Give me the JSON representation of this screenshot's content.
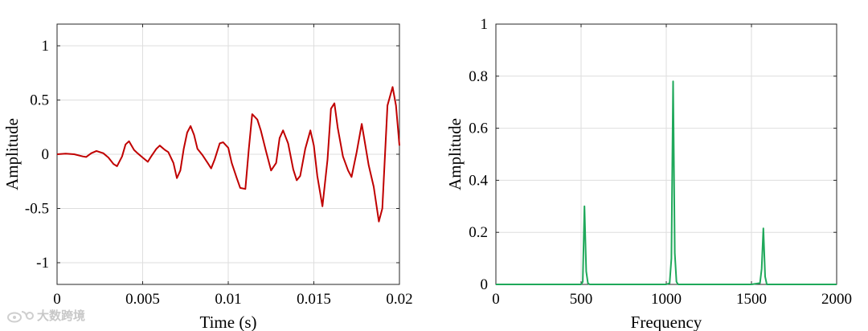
{
  "chart_data": [
    {
      "type": "line",
      "xlabel": "Time (s)",
      "ylabel": "Amplitude",
      "xlim": [
        0,
        0.02
      ],
      "ylim": [
        -1.2,
        1.2
      ],
      "xticks": [
        0,
        0.005,
        0.01,
        0.015,
        0.02
      ],
      "xtick_labels": [
        "0",
        "0.005",
        "0.01",
        "0.015",
        "0.02"
      ],
      "yticks": [
        -1,
        -0.5,
        0,
        0.5,
        1
      ],
      "ytick_labels": [
        "-1",
        "-0.5",
        "0",
        "0.5",
        "1"
      ],
      "grid": true,
      "series": [
        {
          "color": "#c00000",
          "x": [
            0,
            0.0005,
            0.001,
            0.0015,
            0.0017,
            0.002,
            0.0023,
            0.0027,
            0.003,
            0.0033,
            0.0035,
            0.0038,
            0.004,
            0.0042,
            0.0045,
            0.0047,
            0.005,
            0.0053,
            0.0055,
            0.0058,
            0.006,
            0.0063,
            0.0065,
            0.0068,
            0.007,
            0.0072,
            0.0074,
            0.0076,
            0.0078,
            0.008,
            0.0082,
            0.0085,
            0.0088,
            0.009,
            0.0092,
            0.0095,
            0.0097,
            0.01,
            0.0102,
            0.0105,
            0.0107,
            0.011,
            0.0112,
            0.0114,
            0.0117,
            0.0119,
            0.0122,
            0.0125,
            0.0128,
            0.013,
            0.0132,
            0.0135,
            0.0138,
            0.014,
            0.0142,
            0.0145,
            0.0148,
            0.015,
            0.0152,
            0.0155,
            0.0158,
            0.016,
            0.0162,
            0.0164,
            0.0167,
            0.017,
            0.0172,
            0.0175,
            0.0178,
            0.018,
            0.0182,
            0.0185,
            0.0188,
            0.019,
            0.0193,
            0.0196,
            0.0198,
            0.02
          ],
          "y": [
            0,
            0.005,
            0,
            -0.02,
            -0.025,
            0.01,
            0.03,
            0.01,
            -0.03,
            -0.09,
            -0.11,
            -0.02,
            0.09,
            0.12,
            0.04,
            0.01,
            -0.03,
            -0.07,
            -0.02,
            0.05,
            0.08,
            0.04,
            0.02,
            -0.08,
            -0.22,
            -0.15,
            0.05,
            0.2,
            0.26,
            0.18,
            0.05,
            -0.01,
            -0.08,
            -0.13,
            -0.05,
            0.1,
            0.11,
            0.06,
            -0.08,
            -0.22,
            -0.31,
            -0.32,
            0.05,
            0.37,
            0.32,
            0.22,
            0.03,
            -0.15,
            -0.08,
            0.15,
            0.22,
            0.1,
            -0.14,
            -0.24,
            -0.2,
            0.05,
            0.22,
            0.08,
            -0.2,
            -0.48,
            -0.05,
            0.42,
            0.47,
            0.24,
            -0.02,
            -0.15,
            -0.21,
            0.02,
            0.28,
            0.09,
            -0.1,
            -0.3,
            -0.62,
            -0.5,
            0.45,
            0.62,
            0.45,
            0.08
          ]
        }
      ]
    },
    {
      "type": "line",
      "xlabel": "Frequency",
      "ylabel": "Amplitude",
      "xlim": [
        0,
        2000
      ],
      "ylim": [
        0,
        1
      ],
      "xticks": [
        0,
        500,
        1000,
        1500,
        2000
      ],
      "xtick_labels": [
        "0",
        "500",
        "1000",
        "1500",
        "2000"
      ],
      "yticks": [
        0,
        0.2,
        0.4,
        0.6,
        0.8,
        1
      ],
      "ytick_labels": [
        "0",
        "0.2",
        "0.4",
        "0.6",
        "0.8",
        "1"
      ],
      "grid": true,
      "series": [
        {
          "color": "#1fa85a",
          "x": [
            0,
            500,
            510,
            520,
            530,
            540,
            550,
            1000,
            1020,
            1030,
            1040,
            1050,
            1060,
            1070,
            1500,
            1550,
            1560,
            1570,
            1580,
            1590,
            2000
          ],
          "y": [
            0,
            0,
            0.01,
            0.3,
            0.05,
            0.005,
            0,
            0,
            0.005,
            0.1,
            0.78,
            0.12,
            0.01,
            0,
            0,
            0.005,
            0.06,
            0.215,
            0.03,
            0,
            0
          ]
        }
      ]
    }
  ],
  "watermark": {
    "logo_icon": "weibo-logo",
    "text": "大数跨境"
  }
}
